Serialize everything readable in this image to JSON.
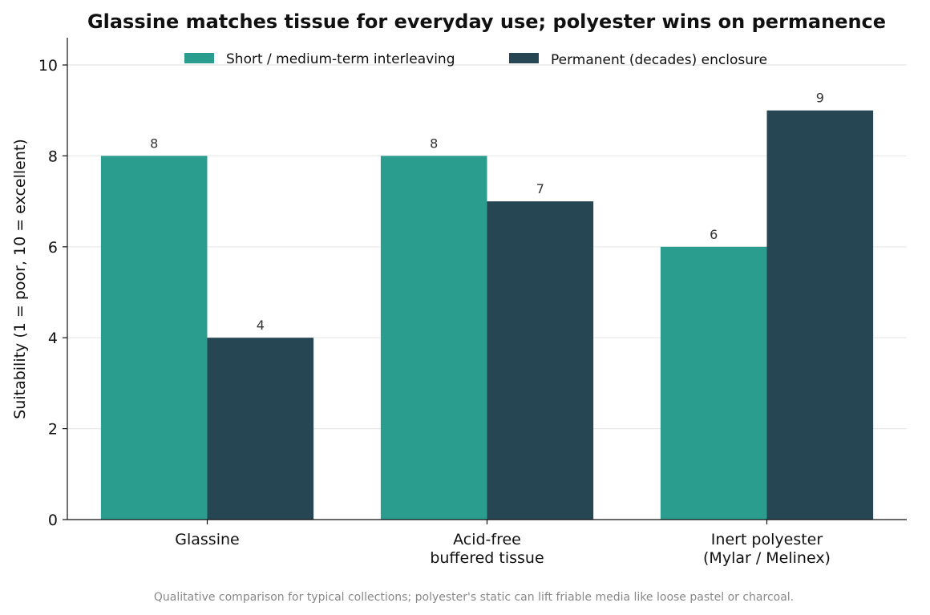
{
  "chart_data": {
    "type": "bar",
    "title": "Glassine matches tissue for everyday use; polyester wins on permanence",
    "xlabel": "",
    "ylabel": "Suitability (1 = poor, 10 = excellent)",
    "categories": [
      [
        "Glassine"
      ],
      [
        "Acid-free",
        "buffered tissue"
      ],
      [
        "Inert polyester",
        "(Mylar / Melinex)"
      ]
    ],
    "series": [
      {
        "name": "Short / medium-term interleaving",
        "values": [
          8,
          8,
          6
        ],
        "color": "#2a9d8f"
      },
      {
        "name": "Permanent (decades) enclosure",
        "values": [
          4,
          7,
          9
        ],
        "color": "#264653"
      }
    ],
    "ylim": [
      0,
      10.6
    ],
    "yticks": [
      0,
      2,
      4,
      6,
      8,
      10
    ],
    "grid": "y",
    "legend": "top-center",
    "caption": "Qualitative comparison for typical collections; polyester's static can lift friable media like loose pastel or charcoal."
  }
}
